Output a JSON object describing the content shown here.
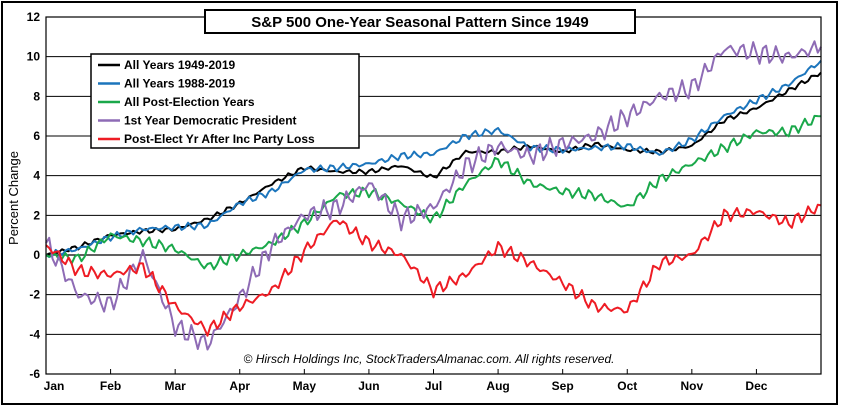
{
  "chart_data": {
    "type": "line",
    "title": "S&P 500 One-Year Seasonal Pattern Since 1949",
    "xlabel": "",
    "ylabel": "Percent Change",
    "ylim": [
      -6,
      12
    ],
    "yticks": [
      -6,
      -4,
      -2,
      0,
      2,
      4,
      6,
      8,
      10,
      12
    ],
    "xlim": [
      0,
      12
    ],
    "month_labels": [
      "Jan",
      "Feb",
      "Mar",
      "Apr",
      "May",
      "Jun",
      "Jul",
      "Aug",
      "Sep",
      "Oct",
      "Nov",
      "Dec"
    ],
    "grid": "horizontal",
    "legend_position": "top-left",
    "credit": "© Hirsch Holdings Inc, StockTradersAlmanac.com. All rights reserved.",
    "series": [
      {
        "name": "All Years 1949-2019",
        "color": "#000000",
        "x": [
          0,
          0.5,
          1,
          1.5,
          2,
          2.5,
          3,
          3.5,
          4,
          4.5,
          5,
          5.5,
          6,
          6.5,
          7,
          7.5,
          8,
          8.5,
          9,
          9.5,
          10,
          10.5,
          11,
          11.5,
          12
        ],
        "values": [
          0,
          0.4,
          1,
          1.2,
          1.3,
          1.8,
          2.6,
          3.6,
          4.4,
          4.2,
          4.2,
          4.5,
          3.9,
          5.2,
          5.2,
          5.5,
          5.2,
          5.6,
          5.3,
          5.2,
          5.5,
          6.8,
          7.4,
          8.3,
          9.2
        ]
      },
      {
        "name": "All Years 1988-2019",
        "color": "#1c75bc",
        "x": [
          0,
          0.5,
          1,
          1.5,
          2,
          2.5,
          3,
          3.5,
          4,
          4.5,
          5,
          5.5,
          6,
          6.5,
          7,
          7.5,
          8,
          8.5,
          9,
          9.5,
          10,
          10.5,
          11,
          11.5,
          12
        ],
        "values": [
          0,
          0.3,
          0.9,
          1.3,
          1.4,
          1.5,
          2.6,
          3.2,
          4.3,
          4.4,
          4.6,
          5.0,
          5.1,
          6.0,
          6.3,
          5.4,
          5.3,
          5.4,
          5.5,
          5.1,
          5.8,
          7.0,
          7.8,
          8.6,
          9.8
        ]
      },
      {
        "name": "All Post-Election Years",
        "color": "#1aa84a",
        "x": [
          0,
          0.5,
          1,
          1.5,
          2,
          2.5,
          3,
          3.5,
          4,
          4.5,
          5,
          5.5,
          6,
          6.5,
          7,
          7.5,
          8,
          8.5,
          9,
          9.5,
          10,
          10.5,
          11,
          11.5,
          12
        ],
        "values": [
          0,
          -0.2,
          1,
          0.7,
          0.3,
          -0.6,
          0,
          0.6,
          1.6,
          3.0,
          3.2,
          2.6,
          1.8,
          3.6,
          4.8,
          3.6,
          3.2,
          3.0,
          2.4,
          3.8,
          4.6,
          5.4,
          6.2,
          6.2,
          7.0
        ]
      },
      {
        "name": "1st Year Democratic President",
        "color": "#8e6bb5",
        "x": [
          0,
          0.5,
          1,
          1.5,
          2,
          2.5,
          3,
          3.5,
          4,
          4.5,
          5,
          5.5,
          6,
          6.5,
          7,
          7.5,
          8,
          8.5,
          9,
          9.5,
          10,
          10.5,
          11,
          11.5,
          12
        ],
        "values": [
          0.6,
          -2.0,
          -2.5,
          0,
          -3.6,
          -4.5,
          -2.2,
          0.5,
          2.0,
          2.4,
          3.6,
          1.8,
          2.4,
          4.5,
          5.5,
          5.0,
          5.6,
          6.0,
          7.0,
          8.0,
          8.4,
          10.4,
          10.2,
          10.0,
          10.5
        ]
      },
      {
        "name": "Post-Elect Yr After Inc Party Loss",
        "color": "#ee1c24",
        "x": [
          0,
          0.5,
          1,
          1.5,
          2,
          2.5,
          3,
          3.5,
          4,
          4.5,
          5,
          5.5,
          6,
          6.5,
          7,
          7.5,
          8,
          8.5,
          9,
          9.5,
          10,
          10.5,
          11,
          11.5,
          12
        ],
        "values": [
          0.5,
          -0.8,
          -1.0,
          -0.6,
          -2.6,
          -3.8,
          -2.6,
          -1.8,
          0.2,
          1.8,
          0.6,
          0,
          -1.8,
          -1.0,
          0.4,
          -0.4,
          -1.4,
          -2.6,
          -2.8,
          -0.4,
          0,
          2.0,
          2.2,
          1.6,
          2.5
        ]
      }
    ]
  }
}
